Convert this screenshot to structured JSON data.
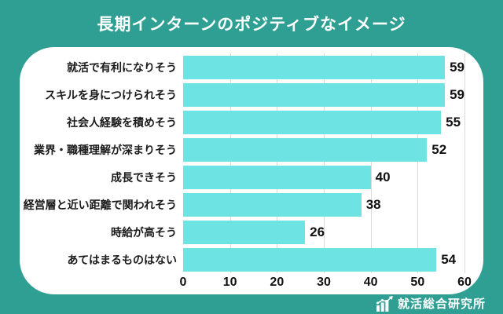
{
  "title": "長期インターンのポジティブなイメージ",
  "chart_data": {
    "type": "bar",
    "orientation": "horizontal",
    "title": "長期インターンのポジティブなイメージ",
    "categories": [
      "就活で有利になりそう",
      "スキルを身につけられそう",
      "社会人経験を積めそう",
      "業界・職種理解が深まりそう",
      "成長できそう",
      "経営層と近い距離で関われそう",
      "時給が高そう",
      "あてはまるものはない"
    ],
    "values": [
      59,
      59,
      55,
      52,
      40,
      38,
      26,
      54
    ],
    "xlabel": "",
    "ylabel": "",
    "xlim": [
      0,
      60
    ],
    "x_ticks": [
      0,
      10,
      20,
      30,
      40,
      50,
      60
    ],
    "grid": true,
    "legend_position": "none"
  },
  "footer": {
    "brand": "就活総合研究所"
  },
  "colors": {
    "background": "#2e9f92",
    "card": "#ffffff",
    "bar": "#6de3e4",
    "title_text": "#ffffff",
    "label_text": "#1b1b1b",
    "value_text": "#111111",
    "gridline": "#d9d9d9"
  }
}
